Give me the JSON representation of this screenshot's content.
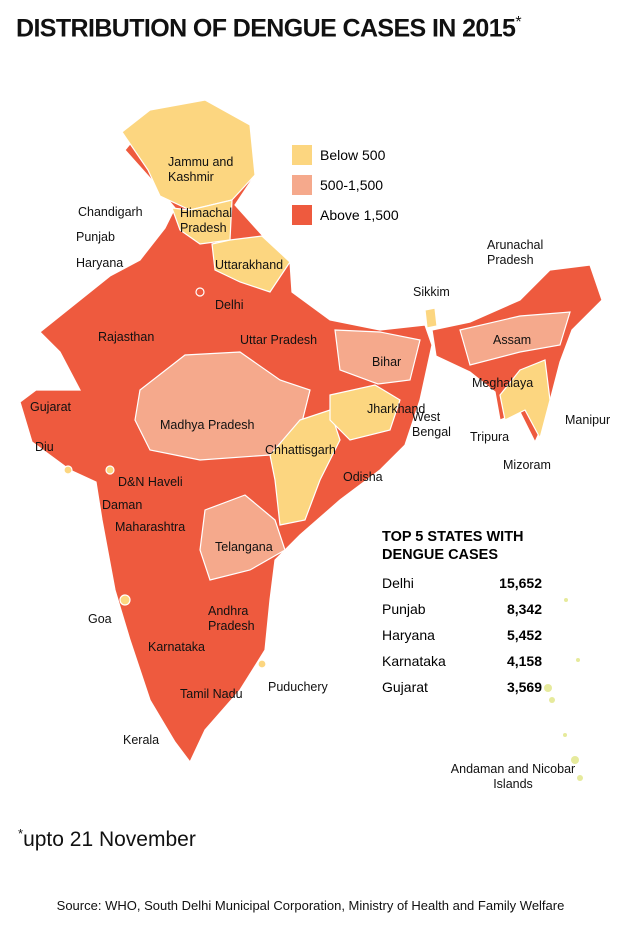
{
  "header": {
    "title": "DISTRIBUTION OF DENGUE CASES IN 2015",
    "title_mark": "*"
  },
  "legend": [
    {
      "label": "Below 500",
      "color": "#fcd680"
    },
    {
      "label": "500-1,500",
      "color": "#f5a98c"
    },
    {
      "label": "Above 1,500",
      "color": "#ee5a3e"
    }
  ],
  "regions": [
    {
      "label": "Jammu and Kashmir"
    },
    {
      "label": "Himachal Pradesh"
    },
    {
      "label": "Chandigarh"
    },
    {
      "label": "Punjab"
    },
    {
      "label": "Haryana"
    },
    {
      "label": "Uttarakhand"
    },
    {
      "label": "Delhi"
    },
    {
      "label": "Rajasthan"
    },
    {
      "label": "Uttar Pradesh"
    },
    {
      "label": "Gujarat"
    },
    {
      "label": "Diu"
    },
    {
      "label": "D&N Haveli"
    },
    {
      "label": "Daman"
    },
    {
      "label": "Maharashtra"
    },
    {
      "label": "Madhya Pradesh"
    },
    {
      "label": "Bihar"
    },
    {
      "label": "Jharkhand"
    },
    {
      "label": "West Bengal"
    },
    {
      "label": "Chhattisgarh"
    },
    {
      "label": "Odisha"
    },
    {
      "label": "Telangana"
    },
    {
      "label": "Goa"
    },
    {
      "label": "Andhra Pradesh"
    },
    {
      "label": "Karnataka"
    },
    {
      "label": "Puduchery"
    },
    {
      "label": "Tamil Nadu"
    },
    {
      "label": "Kerala"
    },
    {
      "label": "Sikkim"
    },
    {
      "label": "Arunachal Pradesh"
    },
    {
      "label": "Assam"
    },
    {
      "label": "Meghalaya"
    },
    {
      "label": "Manipur"
    },
    {
      "label": "Tripura"
    },
    {
      "label": "Mizoram"
    },
    {
      "label": "Andaman and Nicobar Islands"
    }
  ],
  "table": {
    "title": "TOP 5 STATES WITH DENGUE CASES",
    "rows": [
      [
        "Delhi",
        "15,652"
      ],
      [
        "Punjab",
        "8,342"
      ],
      [
        "Haryana",
        "5,452"
      ],
      [
        "Karnataka",
        "4,158"
      ],
      [
        "Gujarat",
        "3,569"
      ]
    ]
  },
  "footnote": {
    "mark": "*",
    "text": "upto 21 November"
  },
  "source": "Source: WHO,  South Delhi Municipal Corporation, Ministry of Health and Family Welfare"
}
